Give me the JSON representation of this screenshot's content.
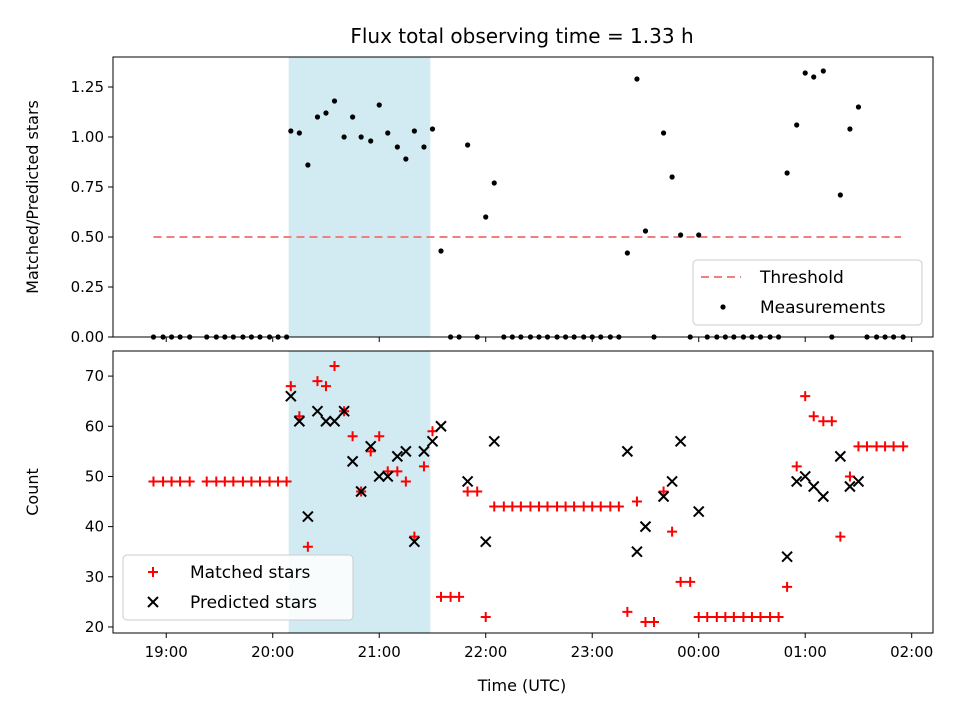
{
  "title": "Flux total observing time = 1.33 h",
  "colors": {
    "measurements": "#000000",
    "threshold": "#f08080",
    "matched": "#ff0000",
    "predicted": "#000000",
    "shade": "#add8e6"
  },
  "chart_data": [
    {
      "type": "scatter",
      "title": "Flux total observing time = 1.33 h",
      "xlabel": "",
      "ylabel": "Matched/Predicted stars",
      "xlim": [
        18.5,
        26.2
      ],
      "ylim": [
        0,
        1.4
      ],
      "yticks": [
        "0.00",
        "0.25",
        "0.50",
        "0.75",
        "1.00",
        "1.25"
      ],
      "shaded_region": [
        20.15,
        21.48
      ],
      "threshold": {
        "name": "Threshold",
        "value": 0.5,
        "x_range": [
          18.88,
          25.9
        ]
      },
      "legend": {
        "position": "lower right",
        "entries": [
          "Threshold",
          "Measurements"
        ]
      },
      "series": [
        {
          "name": "Measurements",
          "marker": "dot",
          "points": [
            [
              18.88,
              0
            ],
            [
              18.97,
              0
            ],
            [
              19.05,
              0
            ],
            [
              19.13,
              0
            ],
            [
              19.22,
              0
            ],
            [
              19.38,
              0
            ],
            [
              19.47,
              0
            ],
            [
              19.55,
              0
            ],
            [
              19.63,
              0
            ],
            [
              19.72,
              0
            ],
            [
              19.8,
              0
            ],
            [
              19.88,
              0
            ],
            [
              19.97,
              0
            ],
            [
              20.05,
              0
            ],
            [
              20.13,
              0
            ],
            [
              20.17,
              1.03
            ],
            [
              20.25,
              1.02
            ],
            [
              20.33,
              0.86
            ],
            [
              20.42,
              1.1
            ],
            [
              20.5,
              1.12
            ],
            [
              20.58,
              1.18
            ],
            [
              20.67,
              1.0
            ],
            [
              20.75,
              1.1
            ],
            [
              20.83,
              1.0
            ],
            [
              20.92,
              0.98
            ],
            [
              21.0,
              1.16
            ],
            [
              21.08,
              1.02
            ],
            [
              21.17,
              0.95
            ],
            [
              21.25,
              0.89
            ],
            [
              21.33,
              1.03
            ],
            [
              21.42,
              0.95
            ],
            [
              21.5,
              1.04
            ],
            [
              21.58,
              0.43
            ],
            [
              21.67,
              0
            ],
            [
              21.75,
              0
            ],
            [
              21.83,
              0.96
            ],
            [
              21.92,
              0
            ],
            [
              22.0,
              0.6
            ],
            [
              22.08,
              0.77
            ],
            [
              22.17,
              0
            ],
            [
              22.25,
              0
            ],
            [
              22.33,
              0
            ],
            [
              22.42,
              0
            ],
            [
              22.5,
              0
            ],
            [
              22.58,
              0
            ],
            [
              22.67,
              0
            ],
            [
              22.75,
              0
            ],
            [
              22.83,
              0
            ],
            [
              22.92,
              0
            ],
            [
              23.0,
              0
            ],
            [
              23.08,
              0
            ],
            [
              23.17,
              0
            ],
            [
              23.25,
              0
            ],
            [
              23.33,
              0.42
            ],
            [
              23.42,
              1.29
            ],
            [
              23.5,
              0.53
            ],
            [
              23.58,
              0
            ],
            [
              23.67,
              1.02
            ],
            [
              23.75,
              0.8
            ],
            [
              23.83,
              0.51
            ],
            [
              23.92,
              0
            ],
            [
              24.0,
              0.51
            ],
            [
              24.08,
              0
            ],
            [
              24.17,
              0
            ],
            [
              24.25,
              0
            ],
            [
              24.33,
              0
            ],
            [
              24.42,
              0
            ],
            [
              24.5,
              0
            ],
            [
              24.58,
              0
            ],
            [
              24.67,
              0
            ],
            [
              24.75,
              0
            ],
            [
              24.83,
              0.82
            ],
            [
              24.92,
              1.06
            ],
            [
              25.0,
              1.32
            ],
            [
              25.08,
              1.3
            ],
            [
              25.17,
              1.33
            ],
            [
              25.25,
              0
            ],
            [
              25.33,
              0.71
            ],
            [
              25.42,
              1.04
            ],
            [
              25.5,
              1.15
            ],
            [
              25.58,
              0
            ],
            [
              25.67,
              0
            ],
            [
              25.75,
              0
            ],
            [
              25.83,
              0
            ],
            [
              25.92,
              0
            ]
          ]
        }
      ]
    },
    {
      "type": "scatter",
      "title": "",
      "xlabel": "Time (UTC)",
      "ylabel": "Count",
      "xlim": [
        18.5,
        26.2
      ],
      "ylim": [
        18.8,
        75
      ],
      "yticks": [
        "20",
        "30",
        "40",
        "50",
        "60",
        "70"
      ],
      "xtick_labels": [
        "19:00",
        "20:00",
        "21:00",
        "22:00",
        "23:00",
        "00:00",
        "01:00",
        "02:00"
      ],
      "shaded_region": [
        20.15,
        21.48
      ],
      "legend": {
        "position": "lower left",
        "entries": [
          "Matched stars",
          "Predicted stars"
        ]
      },
      "series": [
        {
          "name": "Matched stars",
          "marker": "plus",
          "points": [
            [
              18.88,
              49
            ],
            [
              18.97,
              49
            ],
            [
              19.05,
              49
            ],
            [
              19.13,
              49
            ],
            [
              19.22,
              49
            ],
            [
              19.38,
              49
            ],
            [
              19.47,
              49
            ],
            [
              19.55,
              49
            ],
            [
              19.63,
              49
            ],
            [
              19.72,
              49
            ],
            [
              19.8,
              49
            ],
            [
              19.88,
              49
            ],
            [
              19.97,
              49
            ],
            [
              20.05,
              49
            ],
            [
              20.13,
              49
            ],
            [
              20.17,
              68
            ],
            [
              20.25,
              62
            ],
            [
              20.33,
              36
            ],
            [
              20.42,
              69
            ],
            [
              20.5,
              68
            ],
            [
              20.58,
              72
            ],
            [
              20.67,
              63
            ],
            [
              20.75,
              58
            ],
            [
              20.83,
              47
            ],
            [
              20.92,
              55
            ],
            [
              21.0,
              58
            ],
            [
              21.08,
              51
            ],
            [
              21.17,
              51
            ],
            [
              21.25,
              49
            ],
            [
              21.33,
              38
            ],
            [
              21.42,
              52
            ],
            [
              21.5,
              59
            ],
            [
              21.58,
              26
            ],
            [
              21.67,
              26
            ],
            [
              21.75,
              26
            ],
            [
              21.83,
              47
            ],
            [
              21.92,
              47
            ],
            [
              22.0,
              22
            ],
            [
              22.08,
              44
            ],
            [
              22.17,
              44
            ],
            [
              22.25,
              44
            ],
            [
              22.33,
              44
            ],
            [
              22.42,
              44
            ],
            [
              22.5,
              44
            ],
            [
              22.58,
              44
            ],
            [
              22.67,
              44
            ],
            [
              22.75,
              44
            ],
            [
              22.83,
              44
            ],
            [
              22.92,
              44
            ],
            [
              23.0,
              44
            ],
            [
              23.08,
              44
            ],
            [
              23.17,
              44
            ],
            [
              23.25,
              44
            ],
            [
              23.33,
              23
            ],
            [
              23.42,
              45
            ],
            [
              23.5,
              21
            ],
            [
              23.58,
              21
            ],
            [
              23.67,
              47
            ],
            [
              23.75,
              39
            ],
            [
              23.83,
              29
            ],
            [
              23.92,
              29
            ],
            [
              24.0,
              22
            ],
            [
              24.08,
              22
            ],
            [
              24.17,
              22
            ],
            [
              24.25,
              22
            ],
            [
              24.33,
              22
            ],
            [
              24.42,
              22
            ],
            [
              24.5,
              22
            ],
            [
              24.58,
              22
            ],
            [
              24.67,
              22
            ],
            [
              24.75,
              22
            ],
            [
              24.83,
              28
            ],
            [
              24.92,
              52
            ],
            [
              25.0,
              66
            ],
            [
              25.08,
              62
            ],
            [
              25.17,
              61
            ],
            [
              25.25,
              61
            ],
            [
              25.33,
              38
            ],
            [
              25.42,
              50
            ],
            [
              25.5,
              56
            ],
            [
              25.58,
              56
            ],
            [
              25.67,
              56
            ],
            [
              25.75,
              56
            ],
            [
              25.83,
              56
            ],
            [
              25.92,
              56
            ]
          ]
        },
        {
          "name": "Predicted stars",
          "marker": "x",
          "points": [
            [
              20.17,
              66
            ],
            [
              20.25,
              61
            ],
            [
              20.33,
              42
            ],
            [
              20.42,
              63
            ],
            [
              20.5,
              61
            ],
            [
              20.58,
              61
            ],
            [
              20.67,
              63
            ],
            [
              20.75,
              53
            ],
            [
              20.83,
              47
            ],
            [
              20.92,
              56
            ],
            [
              21.0,
              50
            ],
            [
              21.08,
              50
            ],
            [
              21.17,
              54
            ],
            [
              21.25,
              55
            ],
            [
              21.33,
              37
            ],
            [
              21.42,
              55
            ],
            [
              21.5,
              57
            ],
            [
              21.58,
              60
            ],
            [
              21.83,
              49
            ],
            [
              22.0,
              37
            ],
            [
              22.08,
              57
            ],
            [
              23.33,
              55
            ],
            [
              23.42,
              35
            ],
            [
              23.5,
              40
            ],
            [
              23.67,
              46
            ],
            [
              23.75,
              49
            ],
            [
              23.83,
              57
            ],
            [
              24.0,
              43
            ],
            [
              24.83,
              34
            ],
            [
              24.92,
              49
            ],
            [
              25.0,
              50
            ],
            [
              25.08,
              48
            ],
            [
              25.17,
              46
            ],
            [
              25.33,
              54
            ],
            [
              25.42,
              48
            ],
            [
              25.5,
              49
            ]
          ]
        }
      ]
    }
  ]
}
